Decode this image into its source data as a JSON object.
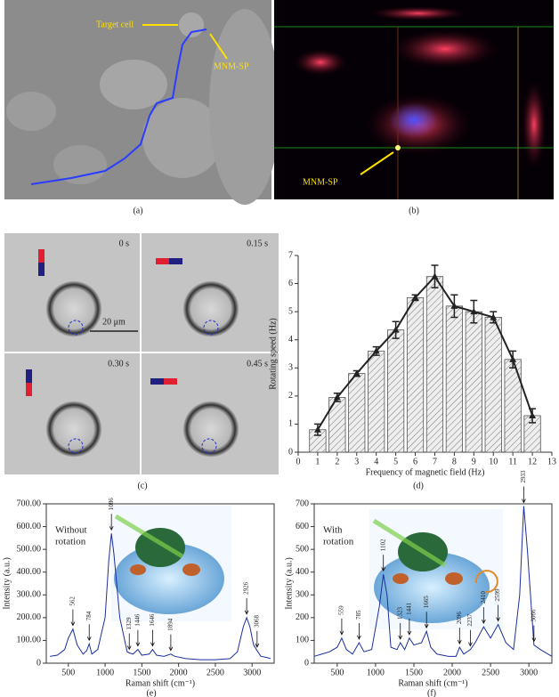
{
  "figure": {
    "panel_labels": [
      "(a)",
      "(b)",
      "(c)",
      "(d)",
      "(e)",
      "(f)"
    ],
    "a": {
      "target_label": "Target cell",
      "particle_label": "MNM-SP"
    },
    "b": {
      "particle_label": "MNM-SP"
    },
    "c": {
      "times": [
        "0 s",
        "0.15 s",
        "0.30 s",
        "0.45 s"
      ],
      "scale_bar": "20 μm"
    }
  },
  "chart_data": [
    {
      "type": "bar",
      "x_label": "Frequency of magnetic field (Hz)",
      "y_label": "Rotating speed (Hz)",
      "x": [
        1,
        2,
        3,
        4,
        5,
        6,
        7,
        8,
        9,
        10,
        11,
        12
      ],
      "values": [
        0.8,
        1.95,
        2.8,
        3.6,
        4.35,
        5.5,
        6.25,
        5.2,
        5.0,
        4.8,
        3.3,
        1.3
      ],
      "errors": [
        0.2,
        0.15,
        0.1,
        0.15,
        0.3,
        0.1,
        0.4,
        0.4,
        0.4,
        0.2,
        0.3,
        0.25
      ],
      "bar_color": "#e6e6e6",
      "line_color": "#222",
      "xlim": [
        0,
        13
      ],
      "xticks": [
        0,
        1,
        2,
        3,
        4,
        5,
        6,
        7,
        8,
        9,
        10,
        11,
        12,
        13
      ],
      "ylim": [
        0,
        7
      ],
      "yticks": [
        0,
        1,
        2,
        3,
        4,
        5,
        6,
        7
      ]
    },
    {
      "type": "line",
      "annotation": [
        "Without",
        "rotation"
      ],
      "x_label": "Raman shift (cm⁻¹)",
      "y_label": "Intensity (a.u.)",
      "x": [
        250,
        350,
        450,
        500,
        562,
        620,
        700,
        750,
        784,
        820,
        900,
        1000,
        1050,
        1086,
        1120,
        1200,
        1300,
        1329,
        1380,
        1446,
        1500,
        1600,
        1646,
        1700,
        1800,
        1894,
        1950,
        2100,
        2300,
        2500,
        2700,
        2800,
        2880,
        2926,
        2970,
        3020,
        3068,
        3120,
        3200,
        3250
      ],
      "values": [
        30,
        35,
        60,
        110,
        150,
        80,
        40,
        55,
        85,
        40,
        60,
        200,
        450,
        570,
        480,
        200,
        50,
        45,
        40,
        60,
        35,
        40,
        60,
        35,
        30,
        40,
        30,
        20,
        15,
        15,
        20,
        50,
        160,
        200,
        160,
        80,
        55,
        30,
        25,
        20
      ],
      "peaks": [
        562,
        784,
        1086,
        1329,
        1446,
        1646,
        1894,
        2926,
        3068
      ],
      "color": "#1a2f9e",
      "xlim": [
        200,
        3300
      ],
      "xticks": [
        500,
        1000,
        1500,
        2000,
        2500,
        3000
      ],
      "ylim": [
        0,
        700
      ],
      "yticks": [
        0,
        {
          "value": 100,
          "label": "100.00"
        },
        {
          "value": 200,
          "label": "200.00"
        },
        {
          "value": 300,
          "label": "300.00"
        },
        {
          "value": 400,
          "label": "400.00"
        },
        {
          "value": 500,
          "label": "500.00"
        },
        {
          "value": 600,
          "label": "600.00"
        },
        {
          "value": 700,
          "label": "700.00"
        }
      ]
    },
    {
      "type": "line",
      "annotation": [
        "With",
        "rotation"
      ],
      "x_label": "Raman shift (cm⁻¹)",
      "y_label": "Intensity (a.u.)",
      "x": [
        200,
        300,
        400,
        500,
        559,
        620,
        700,
        785,
        850,
        950,
        1050,
        1102,
        1150,
        1200,
        1280,
        1323,
        1380,
        1441,
        1500,
        1600,
        1665,
        1720,
        1800,
        1950,
        2050,
        2096,
        2150,
        2237,
        2300,
        2410,
        2500,
        2599,
        2700,
        2800,
        2880,
        2933,
        2980,
        3066,
        3150,
        3250,
        3300
      ],
      "values": [
        30,
        40,
        50,
        70,
        110,
        60,
        40,
        90,
        50,
        60,
        250,
        390,
        300,
        70,
        60,
        90,
        60,
        110,
        80,
        90,
        140,
        70,
        40,
        30,
        30,
        70,
        40,
        60,
        90,
        160,
        110,
        170,
        90,
        60,
        300,
        690,
        500,
        80,
        60,
        40,
        30
      ],
      "peaks": [
        559,
        785,
        1102,
        1323,
        1441,
        1665,
        2096,
        2237,
        2410,
        2599,
        2933,
        3066
      ],
      "color": "#1a2f9e",
      "xlim": [
        200,
        3300
      ],
      "xticks": [
        500,
        1000,
        1500,
        2000,
        2500,
        3000
      ],
      "ylim": [
        0,
        700
      ],
      "yticks": [
        0,
        100,
        200,
        300,
        400,
        500,
        600,
        700
      ]
    }
  ]
}
